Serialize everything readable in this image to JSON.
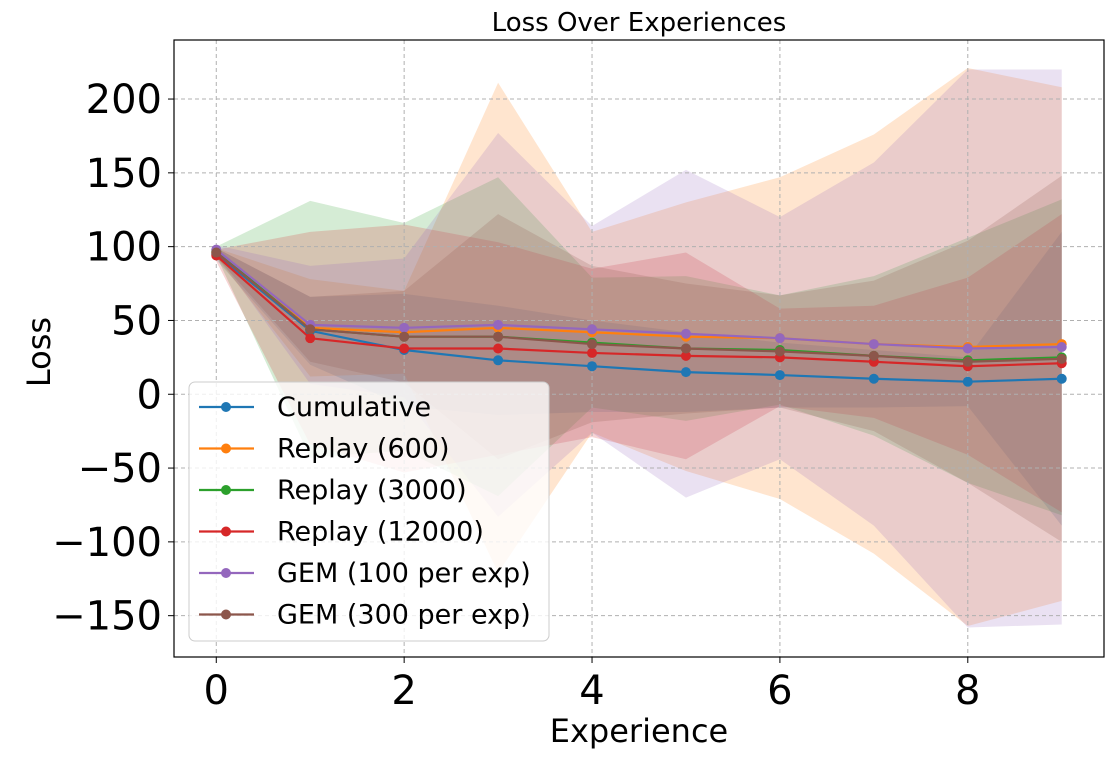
{
  "chart_data": {
    "type": "line",
    "title": "Loss Over Experiences",
    "xlabel": "Experience",
    "ylabel": "Loss",
    "xlim": [
      -0.45,
      9.45
    ],
    "ylim": [
      -178,
      240
    ],
    "xticks": [
      0,
      2,
      4,
      6,
      8
    ],
    "yticks": [
      -150,
      -100,
      -50,
      0,
      50,
      100,
      150,
      200
    ],
    "ytick_labels": [
      "−150",
      "−100",
      "−50",
      "0",
      "50",
      "100",
      "150",
      "200"
    ],
    "grid": true,
    "legend_position": "lower-left",
    "x": [
      0,
      1,
      2,
      3,
      4,
      5,
      6,
      7,
      8,
      9
    ],
    "series": [
      {
        "name": "Cumulative",
        "color": "#1f77b4",
        "values": [
          95,
          43,
          30,
          23,
          19,
          15,
          13,
          10.5,
          8.5,
          10.5
        ],
        "upper": [
          99,
          66,
          68,
          60,
          50,
          42,
          35,
          30,
          25,
          110
        ],
        "lower": [
          91,
          20,
          -8,
          -14,
          -12,
          -12,
          -9,
          -9,
          -8,
          -89
        ]
      },
      {
        "name": "Replay (600)",
        "color": "#ff7f0e",
        "values": [
          96,
          45,
          42,
          45,
          42,
          39,
          38,
          34,
          32,
          34
        ],
        "upper": [
          99,
          78,
          70,
          211,
          110,
          130,
          147,
          176,
          221,
          208
        ],
        "lower": [
          93,
          12,
          14,
          -121,
          -26,
          -52,
          -71,
          -108,
          -157,
          -140
        ]
      },
      {
        "name": "Replay (3000)",
        "color": "#2ca02c",
        "values": [
          97,
          44,
          39,
          39,
          35,
          31,
          30,
          26,
          23,
          25
        ],
        "upper": [
          100,
          131,
          116,
          147,
          79,
          80,
          67,
          80,
          106,
          132
        ],
        "lower": [
          94,
          -43,
          -38,
          -69,
          -9,
          -18,
          -7,
          -28,
          -60,
          -82
        ]
      },
      {
        "name": "Replay (12000)",
        "color": "#d62728",
        "values": [
          94,
          38,
          31,
          31,
          28,
          26,
          25,
          22,
          19,
          21
        ],
        "upper": [
          98,
          110,
          115,
          103,
          85,
          96,
          58,
          60,
          79,
          122
        ],
        "lower": [
          90,
          -34,
          -53,
          -41,
          -29,
          -44,
          -8,
          -16,
          -41,
          -80
        ]
      },
      {
        "name": "GEM (100 per exp)",
        "color": "#9467bd",
        "values": [
          98,
          47,
          45,
          47,
          44,
          41,
          38,
          34,
          31,
          32
        ],
        "upper": [
          101,
          87,
          92,
          177,
          114,
          152,
          120,
          157,
          220,
          220
        ],
        "lower": [
          95,
          7,
          -2,
          -83,
          -26,
          -70,
          -44,
          -89,
          -158,
          -156
        ]
      },
      {
        "name": "GEM (300 per exp)",
        "color": "#8c564b",
        "values": [
          96,
          44,
          39,
          39,
          34,
          31,
          29,
          26,
          22,
          24
        ],
        "upper": [
          99,
          66,
          70,
          122,
          87,
          75,
          67,
          77,
          104,
          148
        ],
        "lower": [
          93,
          22,
          8,
          -44,
          -19,
          -13,
          -9,
          -25,
          -60,
          -100
        ]
      }
    ]
  }
}
